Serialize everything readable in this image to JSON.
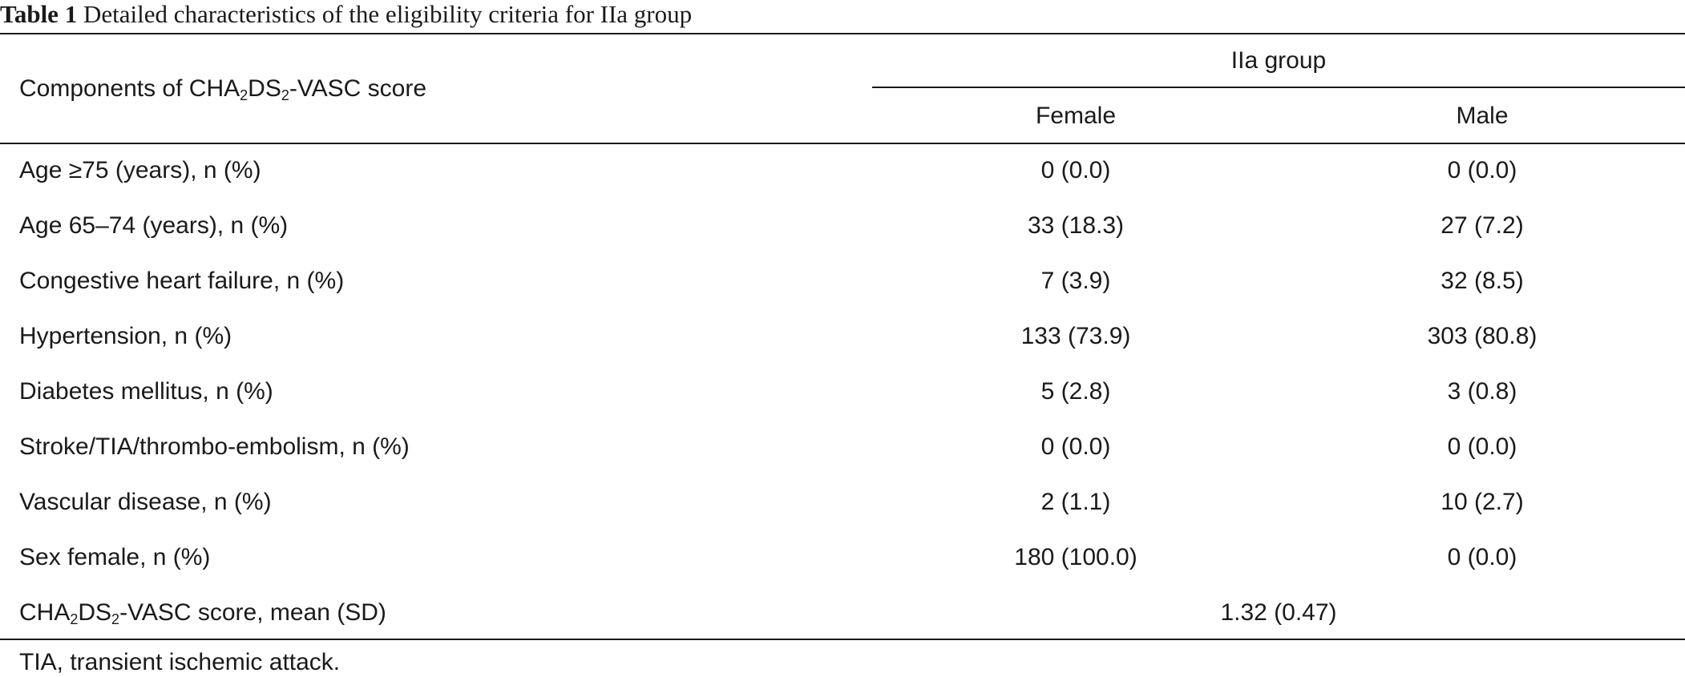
{
  "caption": {
    "label": "Table 1",
    "text": "Detailed characteristics of the eligibility criteria for IIa group"
  },
  "header": {
    "stub_parts": [
      "Components of CHA",
      "2",
      "DS",
      "2",
      "-VASC score"
    ],
    "group_label": "IIa group",
    "female_label": "Female",
    "male_label": "Male"
  },
  "rows": [
    {
      "label": "Age ≥75 (years), n (%)",
      "female": "0 (0.0)",
      "male": "0 (0.0)"
    },
    {
      "label": "Age 65–74 (years), n (%)",
      "female": "33 (18.3)",
      "male": "27 (7.2)"
    },
    {
      "label": "Congestive heart failure, n (%)",
      "female": "7 (3.9)",
      "male": "32 (8.5)"
    },
    {
      "label": "Hypertension, n (%)",
      "female": "133 (73.9)",
      "male": "303 (80.8)"
    },
    {
      "label": "Diabetes mellitus, n (%)",
      "female": "5 (2.8)",
      "male": "3 (0.8)"
    },
    {
      "label": "Stroke/TIA/thrombo-embolism, n (%)",
      "female": "0 (0.0)",
      "male": "0 (0.0)"
    },
    {
      "label": "Vascular disease, n (%)",
      "female": "2 (1.1)",
      "male": "10 (2.7)"
    },
    {
      "label": "Sex female, n (%)",
      "female": "180 (100.0)",
      "male": "0 (0.0)"
    }
  ],
  "score_row": {
    "label_parts": [
      "CHA",
      "2",
      "DS",
      "2",
      "-VASC score, mean (SD)"
    ],
    "value": "1.32 (0.47)"
  },
  "footnote": "TIA, transient ischemic attack."
}
